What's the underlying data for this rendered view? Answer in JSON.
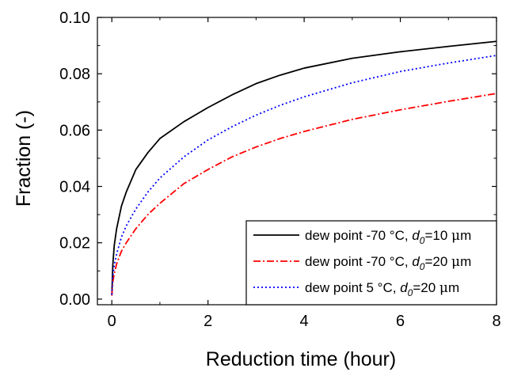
{
  "chart_data": {
    "type": "line",
    "title": "",
    "xlabel": "Reduction time (hour)",
    "ylabel": "Fraction (-)",
    "xlim": [
      -0.3,
      8
    ],
    "ylim": [
      -0.002,
      0.1
    ],
    "xticks": [
      0,
      2,
      4,
      6,
      8
    ],
    "xtick_labels": [
      "0",
      "2",
      "4",
      "6",
      "8"
    ],
    "yticks": [
      0.0,
      0.02,
      0.04,
      0.06,
      0.08,
      0.1
    ],
    "ytick_labels": [
      "0.00",
      "0.02",
      "0.04",
      "0.06",
      "0.08",
      "0.10"
    ],
    "grid": false,
    "legend_position": "bottom-right",
    "series": [
      {
        "name_parts": [
          "dew point -70 °C, ",
          "d",
          "0",
          "=10 ",
          "μ",
          "m"
        ],
        "color": "#000000",
        "dash": "solid",
        "x": [
          0,
          0.02,
          0.05,
          0.1,
          0.2,
          0.3,
          0.5,
          0.75,
          1,
          1.5,
          2,
          2.5,
          3,
          3.5,
          4,
          5,
          6,
          7,
          8
        ],
        "y": [
          0.0015,
          0.012,
          0.019,
          0.025,
          0.033,
          0.038,
          0.046,
          0.052,
          0.057,
          0.063,
          0.068,
          0.0725,
          0.0765,
          0.0795,
          0.082,
          0.0855,
          0.0878,
          0.0897,
          0.0915
        ]
      },
      {
        "name_parts": [
          "dew point -70 °C, ",
          "d",
          "0",
          "=20 ",
          "μ",
          "m"
        ],
        "color": "#ff0000",
        "dash": "dashdot",
        "x": [
          0,
          0.02,
          0.05,
          0.1,
          0.2,
          0.3,
          0.5,
          0.75,
          1,
          1.5,
          2,
          2.5,
          3,
          3.5,
          4,
          5,
          6,
          7,
          8
        ],
        "y": [
          0.0012,
          0.006,
          0.009,
          0.0125,
          0.017,
          0.02,
          0.025,
          0.03,
          0.034,
          0.041,
          0.046,
          0.0505,
          0.054,
          0.057,
          0.0595,
          0.0638,
          0.0672,
          0.0702,
          0.073
        ]
      },
      {
        "name_parts": [
          "dew point 5 °C, ",
          "d",
          "0",
          "=20 ",
          "μ",
          "m"
        ],
        "color": "#0000ff",
        "dash": "dotted",
        "x": [
          0,
          0.02,
          0.05,
          0.1,
          0.2,
          0.3,
          0.5,
          0.75,
          1,
          1.5,
          2,
          2.5,
          3,
          3.5,
          4,
          5,
          6,
          7,
          8
        ],
        "y": [
          0.0015,
          0.008,
          0.012,
          0.016,
          0.022,
          0.026,
          0.032,
          0.038,
          0.043,
          0.0505,
          0.0565,
          0.0612,
          0.0653,
          0.0688,
          0.0718,
          0.0768,
          0.0808,
          0.0838,
          0.0865
        ]
      }
    ]
  }
}
